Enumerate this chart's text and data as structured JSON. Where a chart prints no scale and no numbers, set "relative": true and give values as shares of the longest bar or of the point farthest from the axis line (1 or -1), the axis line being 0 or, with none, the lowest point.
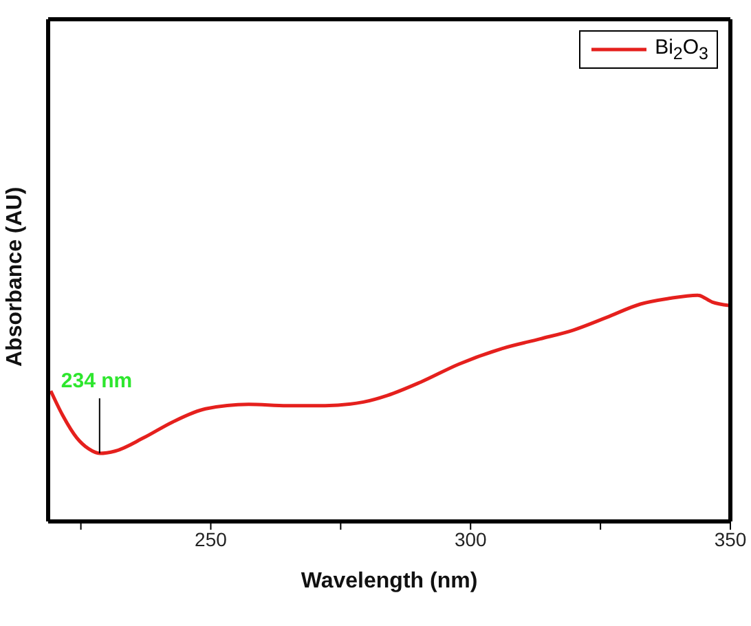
{
  "chart_data": {
    "type": "line",
    "xlabel": "Wavelength (nm)",
    "ylabel": "Absorbance (AU)",
    "relative": true,
    "xlim": [
      218.7,
      350
    ],
    "xticks": [
      {
        "value": 225,
        "label": null
      },
      250,
      {
        "value": 275,
        "label": null
      },
      300,
      {
        "value": 325,
        "label": null
      },
      350
    ],
    "x": [
      219.2,
      221.5,
      224.2,
      226.5,
      228.6,
      231.6,
      237.1,
      242.6,
      249.0,
      257.3,
      264.7,
      272.0,
      279.4,
      284.0,
      290.4,
      297.7,
      306.0,
      313.4,
      319.8,
      326.2,
      332.7,
      338.2,
      343.7,
      346.5,
      349.7
    ],
    "series": [
      {
        "name": "Bi$_{2}$O$_{3}$",
        "color": "#e5201d",
        "values": [
          0.577,
          0.469,
          0.37,
          0.321,
          0.301,
          0.311,
          0.37,
          0.439,
          0.498,
          0.518,
          0.512,
          0.512,
          0.528,
          0.557,
          0.616,
          0.695,
          0.764,
          0.807,
          0.846,
          0.902,
          0.961,
          0.986,
          1,
          0.97,
          0.955
        ]
      }
    ],
    "annotations": [
      {
        "text": "234 nm",
        "x": 228.6,
        "y": 0.301
      }
    ],
    "legend": "top right",
    "grid": false,
    "marker": "none",
    "line_style": "solid"
  }
}
